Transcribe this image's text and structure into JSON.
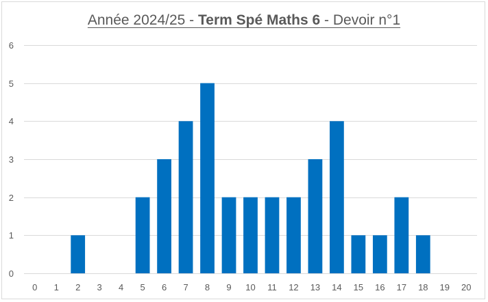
{
  "chart_data": {
    "type": "bar",
    "title": {
      "part1": "Année 2024/25 - ",
      "bold": "Term Spé Maths 6",
      "part2": " - Devoir n°1"
    },
    "categories": [
      "0",
      "1",
      "2",
      "3",
      "4",
      "5",
      "6",
      "7",
      "8",
      "9",
      "10",
      "11",
      "12",
      "13",
      "14",
      "15",
      "16",
      "17",
      "18",
      "19",
      "20"
    ],
    "values": [
      0,
      0,
      1,
      0,
      0,
      2,
      3,
      4,
      5,
      2,
      2,
      2,
      2,
      3,
      4,
      1,
      1,
      2,
      1,
      0,
      0
    ],
    "ylim": [
      0,
      6
    ],
    "yticks": [
      "0",
      "1",
      "2",
      "3",
      "4",
      "5",
      "6"
    ],
    "grid": true,
    "bar_color": "#0070C0",
    "grid_color": "#D9D9D9",
    "xlabel": "",
    "ylabel": ""
  }
}
